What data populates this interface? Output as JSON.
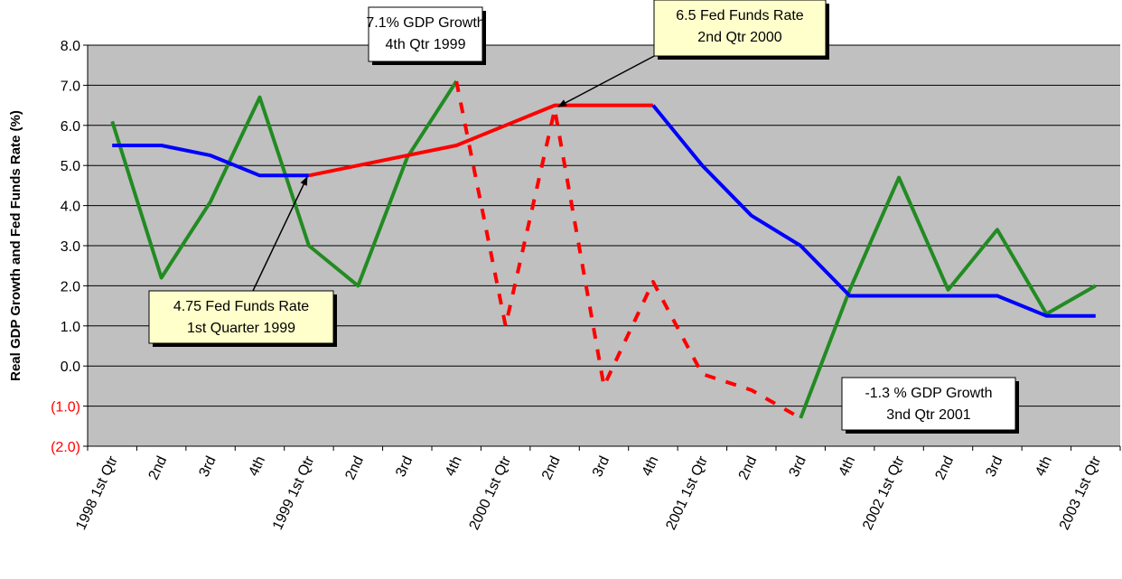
{
  "chart_data": {
    "type": "line",
    "y_label": "Real GDP Growth and Fed Funds Rate (%)",
    "categories": [
      "1998 1st Qtr",
      "2nd",
      "3rd",
      "4th",
      "1999 1st Qtr",
      "2nd",
      "3rd",
      "4th",
      "2000 1st Qtr",
      "2nd",
      "3rd",
      "4th",
      "2001 1st Qtr",
      "2nd",
      "3rd",
      "4th",
      "2002 1st Qtr",
      "2nd",
      "3rd",
      "4th",
      "2003 1st Qtr"
    ],
    "series": [
      {
        "color": "#228b22",
        "values": [
          6.1,
          2.2,
          4.1,
          6.7,
          3.0,
          2.0,
          5.2,
          7.1,
          1.0,
          6.4,
          -0.5,
          2.1,
          -0.2,
          -0.6,
          -1.3,
          1.9,
          4.7,
          1.9,
          3.4,
          1.3,
          2.0
        ],
        "segments": [
          {
            "from": 0,
            "to": 7,
            "color": "#228b22",
            "dashed": false
          },
          {
            "from": 7,
            "to": 14,
            "color": "#ff0000",
            "dashed": true
          },
          {
            "from": 14,
            "to": 20,
            "color": "#228b22",
            "dashed": false
          }
        ]
      },
      {
        "color": "#0000ff",
        "values": [
          5.5,
          5.5,
          5.25,
          4.75,
          4.75,
          5.0,
          5.25,
          5.5,
          6.0,
          6.5,
          6.5,
          6.5,
          5.0,
          3.75,
          3.0,
          1.75,
          1.75,
          1.75,
          1.75,
          1.25,
          1.25
        ],
        "segments": [
          {
            "from": 0,
            "to": 4,
            "color": "#0000ff",
            "dashed": false
          },
          {
            "from": 4,
            "to": 11,
            "color": "#ff0000",
            "dashed": false
          },
          {
            "from": 11,
            "to": 20,
            "color": "#0000ff",
            "dashed": false
          }
        ]
      }
    ],
    "ylim": [
      -2,
      8
    ],
    "yticks": [
      {
        "value": -2,
        "label": "(2.0)"
      },
      {
        "value": -1,
        "label": "(1.0)"
      },
      {
        "value": 0,
        "label": "0.0"
      },
      {
        "value": 1,
        "label": "1.0"
      },
      {
        "value": 2,
        "label": "2.0"
      },
      {
        "value": 3,
        "label": "3.0"
      },
      {
        "value": 4,
        "label": "4.0"
      },
      {
        "value": 5,
        "label": "5.0"
      },
      {
        "value": 6,
        "label": "6.0"
      },
      {
        "value": 7,
        "label": "7.0"
      },
      {
        "value": 8,
        "label": "8.0"
      }
    ],
    "negative_tick_color": "#ff0000",
    "grid": true,
    "plot_background": "#c0c0c0",
    "annotations": [
      {
        "lines": [
          "7.1% GDP Growth",
          "4th Qtr 1999"
        ],
        "fill": "#ffffff"
      },
      {
        "lines": [
          "6.5 Fed Funds Rate",
          "2nd Qtr 2000"
        ],
        "fill": "#ffffcc"
      },
      {
        "lines": [
          "4.75 Fed Funds Rate",
          "1st Quarter 1999"
        ],
        "fill": "#ffffcc"
      },
      {
        "lines": [
          "-1.3 % GDP Growth",
          "3nd Qtr 2001"
        ],
        "fill": "#ffffff"
      }
    ]
  }
}
